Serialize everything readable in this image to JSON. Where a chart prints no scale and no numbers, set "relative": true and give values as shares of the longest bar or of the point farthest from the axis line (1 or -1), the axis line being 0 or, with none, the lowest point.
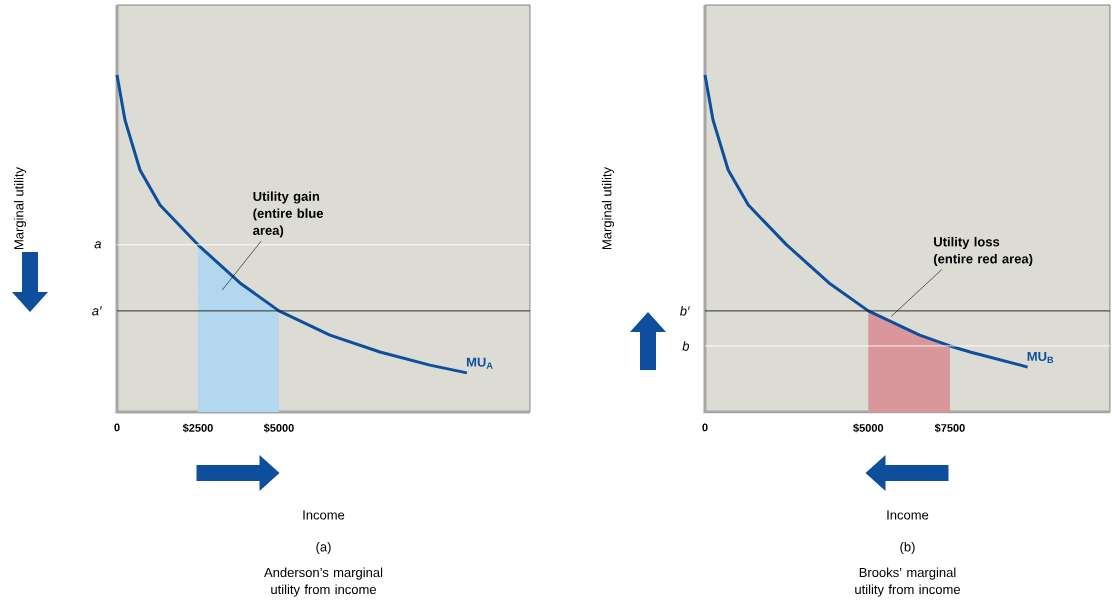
{
  "chart_data": [
    {
      "type": "line",
      "relative": true,
      "title": "(a)",
      "subtitle": "Anderson’s marginal utility from income",
      "xlabel": "Income",
      "ylabel": "Marginal utility",
      "xlim": [
        0,
        12750
      ],
      "xticks": [
        0,
        {
          "value": 2500,
          "label": "$2500"
        },
        {
          "value": 5000,
          "label": "$5000"
        }
      ],
      "series": [
        {
          "type": "area",
          "color": "#b3d7ef",
          "x": [
            2500,
            3796,
            5000
          ],
          "values": [
            0.496,
            0.383,
            0.3
          ]
        },
        {
          "name": "MU$_{A}$",
          "color": "#0d4f9c",
          "x": [
            0,
            247,
            710,
            1327,
            2500,
            3796,
            5000,
            6574,
            8117,
            9660,
            10802
          ],
          "values": [
            1.0,
            0.866,
            0.718,
            0.614,
            0.496,
            0.383,
            0.3,
            0.228,
            0.178,
            0.139,
            0.116
          ]
        }
      ],
      "ref_lines": [
        {
          "axis": "y",
          "value": 0.496,
          "label": "a",
          "color": "#ffffff"
        },
        {
          "axis": "y",
          "value": 0.3,
          "label": "a′",
          "color": "#1a1a1a"
        }
      ],
      "annotations": [
        "Utility gain (entire blue area)"
      ]
    },
    {
      "type": "line",
      "relative": true,
      "title": "(b)",
      "subtitle": "Brooks’ marginal utility from income",
      "xlabel": "Income",
      "ylabel": "Marginal utility",
      "xlim": [
        0,
        12400
      ],
      "xticks": [
        0,
        {
          "value": 5000,
          "label": "$5000"
        },
        {
          "value": 7500,
          "label": "$7500"
        }
      ],
      "series": [
        {
          "type": "area",
          "color": "#da979b",
          "x": [
            5000,
            6574,
            7500
          ],
          "values": [
            0.3,
            0.228,
            0.196
          ]
        },
        {
          "name": "MU$_{B}$",
          "color": "#0d4f9c",
          "x": [
            0,
            247,
            710,
            1327,
            2500,
            3796,
            5000,
            6574,
            7500,
            8117,
            9660,
            9877
          ],
          "values": [
            1.0,
            0.866,
            0.718,
            0.614,
            0.496,
            0.383,
            0.3,
            0.228,
            0.196,
            0.178,
            0.139,
            0.133
          ]
        }
      ],
      "ref_lines": [
        {
          "axis": "y",
          "value": 0.3,
          "label": "b′",
          "color": "#1a1a1a"
        },
        {
          "axis": "y",
          "value": 0.196,
          "label": "b",
          "color": "#ffffff"
        }
      ],
      "annotations": [
        "Utility loss (entire red area)"
      ]
    }
  ]
}
